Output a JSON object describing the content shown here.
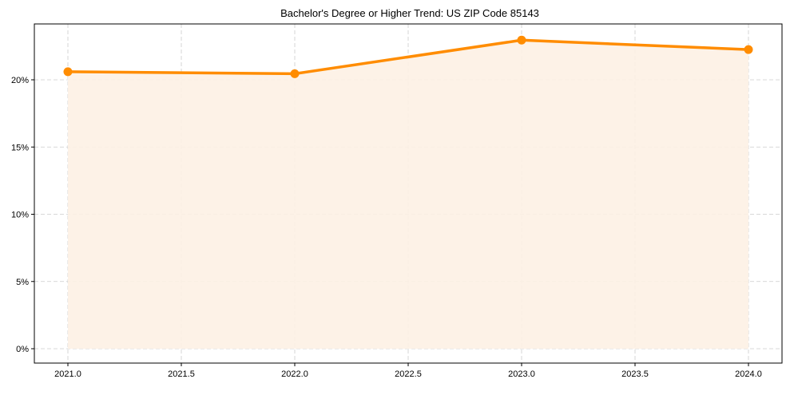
{
  "chart_data": {
    "type": "area",
    "title": "Bachelor's Degree or Higher Trend: US ZIP Code 85143",
    "xlabel": "",
    "ylabel": "",
    "x": [
      2021,
      2022,
      2023,
      2024
    ],
    "series": [
      {
        "name": "Bachelor's Degree or Higher",
        "values": [
          20.6,
          20.45,
          22.95,
          22.25
        ],
        "color": "#ff8c00",
        "fill": "#fdf1e4"
      }
    ],
    "xlim": [
      2020.85,
      2024.15
    ],
    "ylim": [
      -1.15,
      24.1
    ],
    "xticks": [
      2021.0,
      2021.5,
      2022.0,
      2022.5,
      2023.0,
      2023.5,
      2024.0
    ],
    "xtick_labels": [
      "2021.0",
      "2021.5",
      "2022.0",
      "2022.5",
      "2023.0",
      "2023.5",
      "2024.0"
    ],
    "yticks": [
      0,
      5,
      10,
      15,
      20
    ],
    "ytick_labels": [
      "0%",
      "5%",
      "10%",
      "15%",
      "20%"
    ],
    "grid": true,
    "legend": "none"
  }
}
